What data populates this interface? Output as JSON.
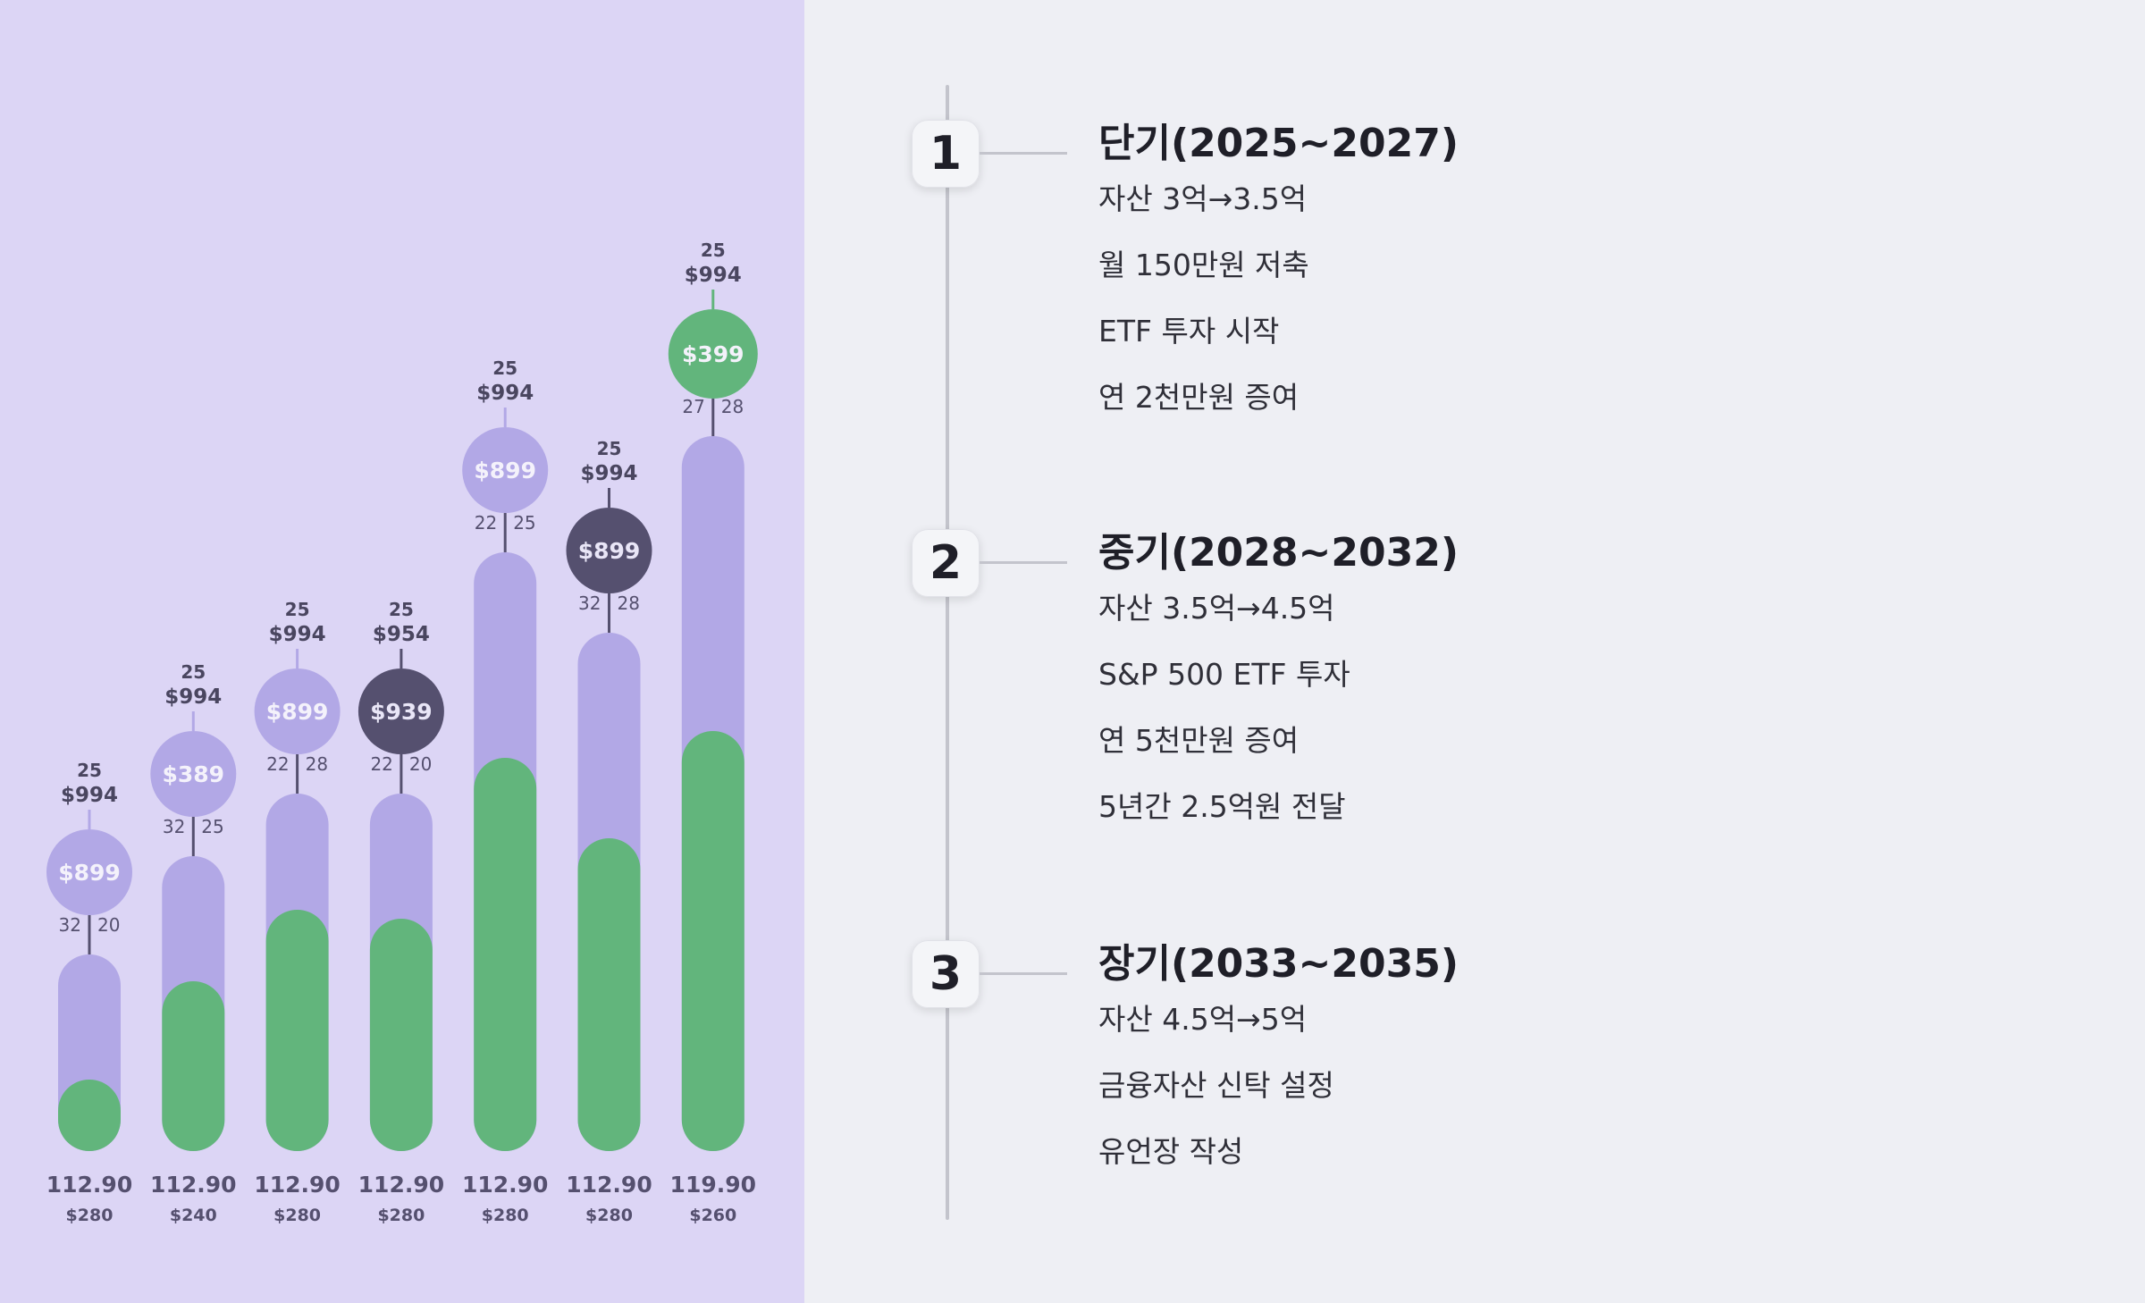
{
  "chart_data": {
    "type": "bar",
    "stacked": true,
    "series": [
      {
        "name": "lower (green)",
        "color": "#62b57c",
        "values": [
          8,
          19,
          27,
          26,
          44,
          35,
          47
        ]
      },
      {
        "name": "upper (purple)",
        "color": "#b2a8e6",
        "values": [
          14,
          14,
          13,
          14,
          23,
          23,
          33
        ]
      }
    ],
    "ylim": [
      0,
      100
    ],
    "categories": [
      "112.90",
      "112.90",
      "112.90",
      "112.90",
      "112.90",
      "112.90",
      "119.90"
    ],
    "sub_labels": [
      "$280",
      "$240",
      "$280",
      "$280",
      "$280",
      "$280",
      "$260"
    ],
    "bubble_values": [
      "$899",
      "$389",
      "$899",
      "$939",
      "$899",
      "$899",
      "$399"
    ],
    "bubble_colors": [
      "#b2a8e6",
      "#b2a8e6",
      "#b2a8e6",
      "#55506f",
      "#b2a8e6",
      "#55506f",
      "#62b57c"
    ],
    "top_codes": [
      "25",
      "25",
      "25",
      "25",
      "25",
      "25",
      "25"
    ],
    "top_prices": [
      "$994",
      "$994",
      "$994",
      "$954",
      "$994",
      "$994",
      "$994"
    ],
    "split_left": [
      "32",
      "32",
      "22",
      "22",
      "22",
      "32",
      "27"
    ],
    "split_right": [
      "20",
      "25",
      "28",
      "20",
      "25",
      "28",
      "28"
    ]
  },
  "timeline": [
    {
      "number": "1",
      "title": "단기(2025~2027)",
      "items": [
        "자산 3억→3.5억",
        "월 150만원 저축",
        "ETF 투자 시작",
        "연 2천만원 증여"
      ]
    },
    {
      "number": "2",
      "title": "중기(2028~2032)",
      "items": [
        "자산 3.5억→4.5억",
        "S&P 500 ETF 투자",
        "연 5천만원 증여",
        "5년간 2.5억원 전달"
      ]
    },
    {
      "number": "3",
      "title": "장기(2033~2035)",
      "items": [
        "자산 4.5억→5억",
        "금융자산 신탁 설정",
        "유언장 작성"
      ]
    }
  ]
}
